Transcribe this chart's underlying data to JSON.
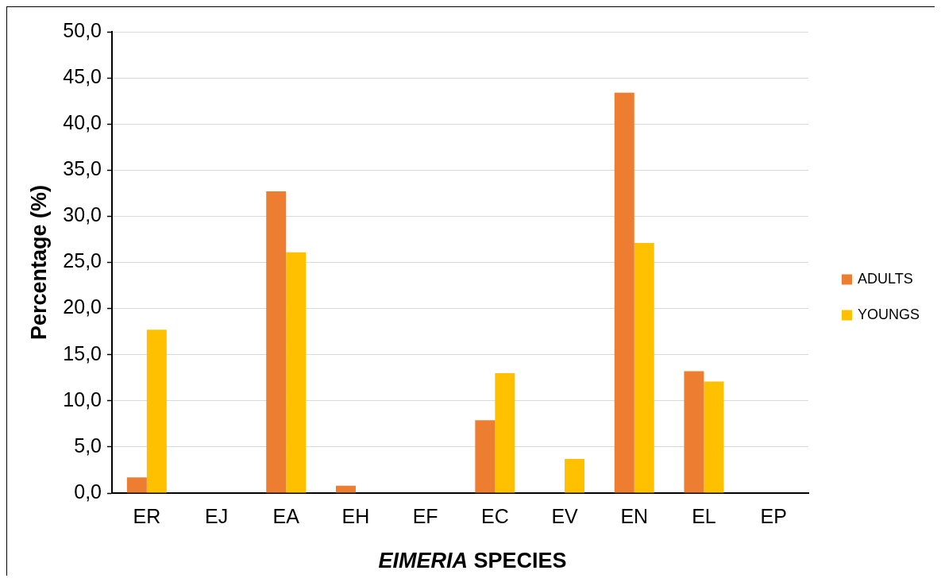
{
  "chart_data": {
    "type": "bar",
    "categories": [
      "ER",
      "EJ",
      "EA",
      "EH",
      "EF",
      "EC",
      "EV",
      "EN",
      "EL",
      "EP"
    ],
    "series": [
      {
        "name": "ADULTS",
        "color": "#ed7d31",
        "values": [
          1.7,
          0,
          32.7,
          0.8,
          0,
          7.9,
          0,
          43.4,
          13.2,
          0
        ]
      },
      {
        "name": "YOUNGS",
        "color": "#ffc000",
        "values": [
          17.7,
          0,
          26.1,
          0,
          0,
          13.0,
          3.7,
          27.1,
          12.1,
          0
        ]
      }
    ],
    "xlabel": "EIMERIA SPECIES",
    "ylabel": "Percentage (%)",
    "ylim": [
      0,
      50
    ],
    "yticks": [
      {
        "value": 0,
        "label": "0,0"
      },
      {
        "value": 5,
        "label": "5,0"
      },
      {
        "value": 10,
        "label": "10,0"
      },
      {
        "value": 15,
        "label": "15,0"
      },
      {
        "value": 20,
        "label": "20,0"
      },
      {
        "value": 25,
        "label": "25,0"
      },
      {
        "value": 30,
        "label": "30,0"
      },
      {
        "value": 35,
        "label": "35,0"
      },
      {
        "value": 40,
        "label": "40,0"
      },
      {
        "value": 45,
        "label": "45,0"
      },
      {
        "value": 50,
        "label": "50,0"
      }
    ],
    "grid": "y",
    "legend": "right"
  }
}
